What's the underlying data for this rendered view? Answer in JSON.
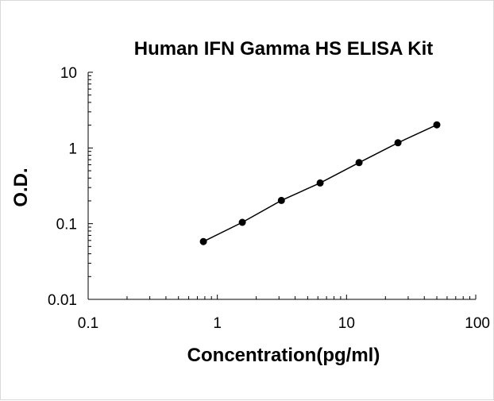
{
  "chart_data": {
    "type": "scatter",
    "title": "Human IFN Gamma HS ELISA Kit",
    "xlabel": "Concentration(pg/ml)",
    "ylabel": "O.D.",
    "xscale": "log",
    "yscale": "log",
    "xlim": [
      0.1,
      100
    ],
    "ylim": [
      0.01,
      10
    ],
    "xticks": [
      "0.1",
      "1",
      "10",
      "100"
    ],
    "yticks": [
      "0.01",
      "0.1",
      "1",
      "10"
    ],
    "grid": false,
    "legend": "none",
    "series": [
      {
        "x": [
          0.78,
          1.56,
          3.13,
          6.25,
          12.5,
          25,
          50
        ],
        "y": [
          0.058,
          0.104,
          0.203,
          0.345,
          0.64,
          1.17,
          2.02
        ],
        "marker_color": "#000000",
        "line_color": "#000000",
        "fit_line": true
      }
    ]
  }
}
